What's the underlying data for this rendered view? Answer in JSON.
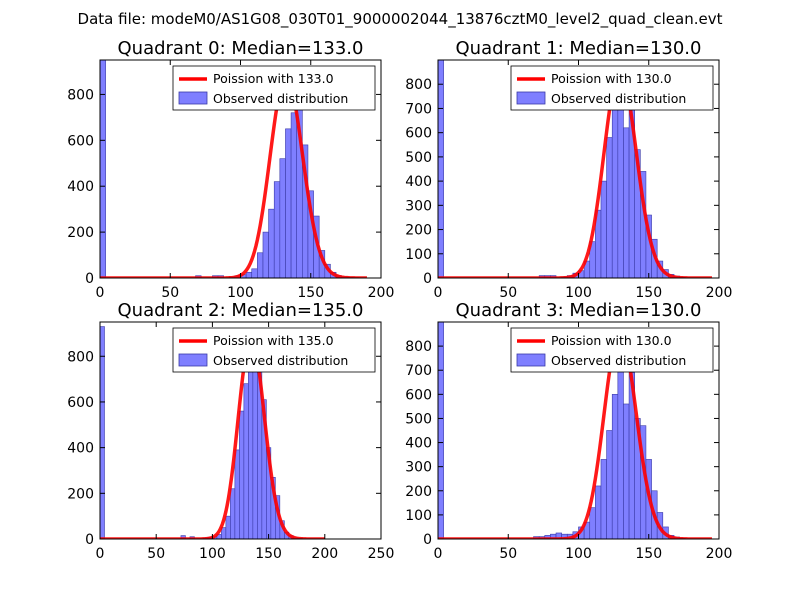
{
  "suptitle": "Data file: modeM0/AS1G08_030T01_9000002044_13876cztM0_level2_quad_clean.evt",
  "colors": {
    "bar_fill": "#7f7fff",
    "bar_edge": "#3a3aa8",
    "fit_line": "#ff0000",
    "axes": "#000000",
    "background": "#ffffff"
  },
  "chart_data": [
    {
      "type": "bar",
      "title": "Quadrant 0: Median=133.0",
      "xlim": [
        0,
        200
      ],
      "ylim": [
        0,
        950
      ],
      "xticks": [
        "0",
        "50",
        "100",
        "150",
        "200"
      ],
      "yticks": [
        "0",
        "200",
        "400",
        "600",
        "800"
      ],
      "xtick_values": [
        0,
        50,
        100,
        150,
        200
      ],
      "ytick_values": [
        0,
        200,
        400,
        600,
        800
      ],
      "legend": {
        "position": "top-right",
        "line_label": "Poission with 133.0",
        "bar_label": "Observed distribution"
      },
      "bin_width": 4,
      "bins": [
        [
          0,
          950
        ],
        [
          68,
          10
        ],
        [
          80,
          10
        ],
        [
          84,
          10
        ],
        [
          92,
          5
        ],
        [
          96,
          10
        ],
        [
          100,
          15
        ],
        [
          104,
          25
        ],
        [
          108,
          40
        ],
        [
          112,
          110
        ],
        [
          116,
          200
        ],
        [
          120,
          300
        ],
        [
          124,
          420
        ],
        [
          128,
          520
        ],
        [
          132,
          650
        ],
        [
          136,
          720
        ],
        [
          140,
          900
        ],
        [
          144,
          580
        ],
        [
          148,
          380
        ],
        [
          152,
          270
        ],
        [
          156,
          120
        ],
        [
          160,
          60
        ],
        [
          164,
          25
        ],
        [
          168,
          10
        ],
        [
          172,
          5
        ],
        [
          176,
          3
        ],
        [
          180,
          2
        ]
      ],
      "poisson": {
        "mean": 133.0,
        "peak": 880,
        "x_range": [
          0,
          190
        ]
      }
    },
    {
      "type": "bar",
      "title": "Quadrant 1: Median=130.0",
      "xlim": [
        0,
        200
      ],
      "ylim": [
        0,
        900
      ],
      "xticks": [
        "0",
        "50",
        "100",
        "150",
        "200"
      ],
      "yticks": [
        "0",
        "100",
        "200",
        "300",
        "400",
        "500",
        "600",
        "700",
        "800"
      ],
      "xtick_values": [
        0,
        50,
        100,
        150,
        200
      ],
      "ytick_values": [
        0,
        100,
        200,
        300,
        400,
        500,
        600,
        700,
        800
      ],
      "legend": {
        "position": "top-right",
        "line_label": "Poission with 130.0",
        "bar_label": "Observed distribution"
      },
      "bin_width": 4,
      "bins": [
        [
          0,
          900
        ],
        [
          72,
          10
        ],
        [
          76,
          10
        ],
        [
          80,
          10
        ],
        [
          88,
          5
        ],
        [
          92,
          10
        ],
        [
          96,
          20
        ],
        [
          100,
          30
        ],
        [
          104,
          70
        ],
        [
          108,
          150
        ],
        [
          112,
          280
        ],
        [
          116,
          400
        ],
        [
          120,
          580
        ],
        [
          124,
          700
        ],
        [
          128,
          860
        ],
        [
          132,
          620
        ],
        [
          136,
          700
        ],
        [
          140,
          530
        ],
        [
          144,
          440
        ],
        [
          148,
          260
        ],
        [
          152,
          160
        ],
        [
          156,
          70
        ],
        [
          160,
          35
        ],
        [
          164,
          15
        ],
        [
          168,
          8
        ],
        [
          172,
          3
        ]
      ],
      "poisson": {
        "mean": 130.0,
        "peak": 860,
        "x_range": [
          0,
          195
        ]
      }
    },
    {
      "type": "bar",
      "title": "Quadrant 2: Median=135.0",
      "xlim": [
        0,
        250
      ],
      "ylim": [
        0,
        950
      ],
      "xticks": [
        "0",
        "50",
        "100",
        "150",
        "200",
        "250"
      ],
      "yticks": [
        "0",
        "200",
        "400",
        "600",
        "800"
      ],
      "xtick_values": [
        0,
        50,
        100,
        150,
        200,
        250
      ],
      "ytick_values": [
        0,
        200,
        400,
        600,
        800
      ],
      "legend": {
        "position": "top-right",
        "line_label": "Poission with 135.0",
        "bar_label": "Observed distribution"
      },
      "bin_width": 4,
      "bins": [
        [
          0,
          930
        ],
        [
          72,
          15
        ],
        [
          80,
          10
        ],
        [
          92,
          5
        ],
        [
          96,
          8
        ],
        [
          100,
          10
        ],
        [
          104,
          20
        ],
        [
          108,
          50
        ],
        [
          112,
          100
        ],
        [
          116,
          220
        ],
        [
          120,
          390
        ],
        [
          124,
          560
        ],
        [
          128,
          680
        ],
        [
          132,
          780
        ],
        [
          136,
          880
        ],
        [
          140,
          800
        ],
        [
          144,
          610
        ],
        [
          148,
          400
        ],
        [
          152,
          270
        ],
        [
          156,
          190
        ],
        [
          160,
          80
        ],
        [
          164,
          30
        ],
        [
          168,
          15
        ],
        [
          172,
          5
        ],
        [
          176,
          3
        ]
      ],
      "poisson": {
        "mean": 135.0,
        "peak": 880,
        "x_range": [
          0,
          200
        ]
      }
    },
    {
      "type": "bar",
      "title": "Quadrant 3: Median=130.0",
      "xlim": [
        0,
        200
      ],
      "ylim": [
        0,
        900
      ],
      "xticks": [
        "0",
        "50",
        "100",
        "150",
        "200"
      ],
      "yticks": [
        "0",
        "100",
        "200",
        "300",
        "400",
        "500",
        "600",
        "700",
        "800"
      ],
      "xtick_values": [
        0,
        50,
        100,
        150,
        200
      ],
      "ytick_values": [
        0,
        100,
        200,
        300,
        400,
        500,
        600,
        700,
        800
      ],
      "legend": {
        "position": "top-right",
        "line_label": "Poission with 130.0",
        "bar_label": "Observed distribution"
      },
      "bin_width": 4,
      "bins": [
        [
          0,
          900
        ],
        [
          68,
          10
        ],
        [
          72,
          10
        ],
        [
          76,
          15
        ],
        [
          80,
          20
        ],
        [
          84,
          25
        ],
        [
          88,
          20
        ],
        [
          92,
          20
        ],
        [
          96,
          30
        ],
        [
          100,
          50
        ],
        [
          104,
          70
        ],
        [
          108,
          130
        ],
        [
          112,
          220
        ],
        [
          116,
          330
        ],
        [
          120,
          450
        ],
        [
          124,
          600
        ],
        [
          128,
          800
        ],
        [
          132,
          560
        ],
        [
          136,
          690
        ],
        [
          140,
          500
        ],
        [
          144,
          470
        ],
        [
          148,
          330
        ],
        [
          152,
          200
        ],
        [
          156,
          110
        ],
        [
          160,
          50
        ],
        [
          164,
          15
        ],
        [
          168,
          8
        ],
        [
          172,
          3
        ]
      ],
      "poisson": {
        "mean": 130.0,
        "peak": 860,
        "x_range": [
          0,
          195
        ]
      }
    }
  ]
}
